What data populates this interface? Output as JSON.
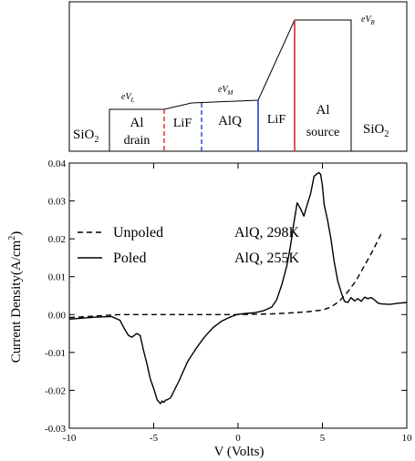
{
  "band_diagram": {
    "labels": {
      "sio2_left_main": "SiO",
      "sio2_left_sub": "2",
      "al_drain_line1": "Al",
      "al_drain_line2": "drain",
      "lif_left": "LiF",
      "alq": "AlQ",
      "lif_right": "LiF",
      "al_source_line1": "Al",
      "al_source_line2": "source",
      "sio2_right_main": "SiO",
      "sio2_right_sub": "2",
      "ev_l_main": "eV",
      "ev_l_sub": "L",
      "ev_m_main": "eV",
      "ev_m_sub": "M",
      "ev_r_main": "eV",
      "ev_r_sub": "R"
    },
    "colors": {
      "lif_left_boundary": "#d62728",
      "lif_alq_boundary": "#1f3fd6",
      "alq_lif_boundary": "#1f3fd6",
      "source_boundary": "#d62728"
    }
  },
  "chart_data": {
    "type": "line",
    "xlabel": "V (Volts)",
    "ylabel_main": "Current Density(A/cm",
    "ylabel_sup": "2",
    "ylabel_end": ")",
    "xlim": [
      -10,
      10
    ],
    "ylim": [
      -0.03,
      0.04
    ],
    "xticks": [
      -10,
      -5,
      0,
      5,
      10
    ],
    "xtick_labels": [
      "-10",
      "-5",
      "0",
      "5",
      "10"
    ],
    "yticks": [
      -0.03,
      -0.02,
      -0.01,
      0.0,
      0.01,
      0.02,
      0.03,
      0.04
    ],
    "ytick_labels": [
      "-0.03",
      "-0.02",
      "-0.01",
      "0.00",
      "0.01",
      "0.02",
      "0.03",
      "0.04"
    ],
    "grid": false,
    "legend_position": "upper-left",
    "series": [
      {
        "name": "Unpoled AlQ, 298K",
        "legend_label": "Unpoled",
        "legend_detail": "AlQ, 298K",
        "style": "dashed",
        "color": "#000000",
        "x": [
          -10,
          -7,
          -5,
          -3,
          -1,
          0,
          1,
          2,
          3,
          4,
          5,
          5.5,
          6,
          6.5,
          7,
          7.5,
          8,
          8.5
        ],
        "y": [
          -0.0008,
          0.0,
          0.0,
          0.0,
          0.0,
          0.0,
          0.0001,
          0.0002,
          0.0004,
          0.0007,
          0.0012,
          0.002,
          0.0035,
          0.006,
          0.009,
          0.013,
          0.017,
          0.0215
        ]
      },
      {
        "name": "Poled AlQ, 255K",
        "legend_label": "Poled",
        "legend_detail": "AlQ, 255K",
        "style": "solid",
        "color": "#000000",
        "x": [
          -10,
          -8.5,
          -7.5,
          -7,
          -6.7,
          -6.5,
          -6.3,
          -6.0,
          -5.8,
          -5.6,
          -5.4,
          -5.2,
          -5.0,
          -4.9,
          -4.8,
          -4.7,
          -4.6,
          -4.5,
          -4.4,
          -4.3,
          -4.2,
          -4.0,
          -3.5,
          -3.0,
          -2.5,
          -2.0,
          -1.5,
          -1.0,
          -0.5,
          0.0,
          0.5,
          1.0,
          1.5,
          2.0,
          2.3,
          2.6,
          2.9,
          3.1,
          3.3,
          3.5,
          3.7,
          3.9,
          4.1,
          4.3,
          4.5,
          4.7,
          4.8,
          4.9,
          5.0,
          5.1,
          5.3,
          5.5,
          5.7,
          5.9,
          6.1,
          6.3,
          6.5,
          6.7,
          6.9,
          7.1,
          7.3,
          7.5,
          7.7,
          7.9,
          8.1,
          8.3,
          8.5,
          9.0,
          9.5,
          10.0
        ],
        "y": [
          -0.0012,
          -0.0007,
          -0.0005,
          -0.0015,
          -0.004,
          -0.0055,
          -0.006,
          -0.005,
          -0.0055,
          -0.0095,
          -0.013,
          -0.017,
          -0.0195,
          -0.021,
          -0.0225,
          -0.023,
          -0.0235,
          -0.0228,
          -0.0232,
          -0.0226,
          -0.0225,
          -0.022,
          -0.0175,
          -0.0125,
          -0.009,
          -0.006,
          -0.0035,
          -0.0018,
          -0.0007,
          0.0001,
          0.0003,
          0.0005,
          0.001,
          0.002,
          0.004,
          0.008,
          0.013,
          0.018,
          0.024,
          0.0295,
          0.028,
          0.026,
          0.029,
          0.032,
          0.0365,
          0.0372,
          0.0375,
          0.037,
          0.034,
          0.029,
          0.025,
          0.02,
          0.014,
          0.009,
          0.006,
          0.0035,
          0.0032,
          0.0045,
          0.0036,
          0.0042,
          0.0035,
          0.0046,
          0.0042,
          0.0045,
          0.0038,
          0.003,
          0.0028,
          0.0027,
          0.003,
          0.0032
        ]
      }
    ]
  }
}
